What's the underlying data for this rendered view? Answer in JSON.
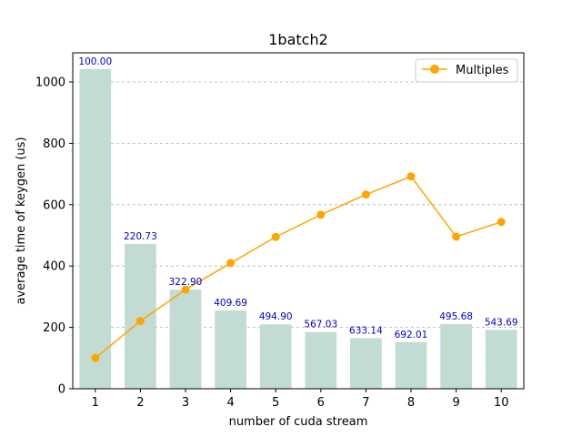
{
  "chart_data": {
    "type": "bar",
    "title": "1batch2",
    "xlabel": "number of cuda stream",
    "ylabel": "average time of keygen (us)",
    "categories": [
      "1",
      "2",
      "3",
      "4",
      "5",
      "6",
      "7",
      "8",
      "9",
      "10"
    ],
    "series": [
      {
        "type": "bar",
        "values": [
          1042,
          472,
          323,
          255,
          210,
          185,
          165,
          152,
          211,
          192
        ],
        "color": "#c2dcd3"
      },
      {
        "type": "line",
        "name": "Multiples",
        "values": [
          100.0,
          220.73,
          322.9,
          409.69,
          494.9,
          567.03,
          633.14,
          692.01,
          495.68,
          543.69
        ],
        "labels": [
          "100.00",
          "220.73",
          "322.90",
          "409.69",
          "494.90",
          "567.03",
          "633.14",
          "692.01",
          "495.68",
          "543.69"
        ],
        "color": "#ffa500",
        "label_color": "#0000cc"
      }
    ],
    "ylim": [
      0,
      1095
    ],
    "yticks": [
      0,
      200,
      400,
      600,
      800,
      1000
    ],
    "grid": "y-dashed",
    "legend_position": "top-right"
  }
}
